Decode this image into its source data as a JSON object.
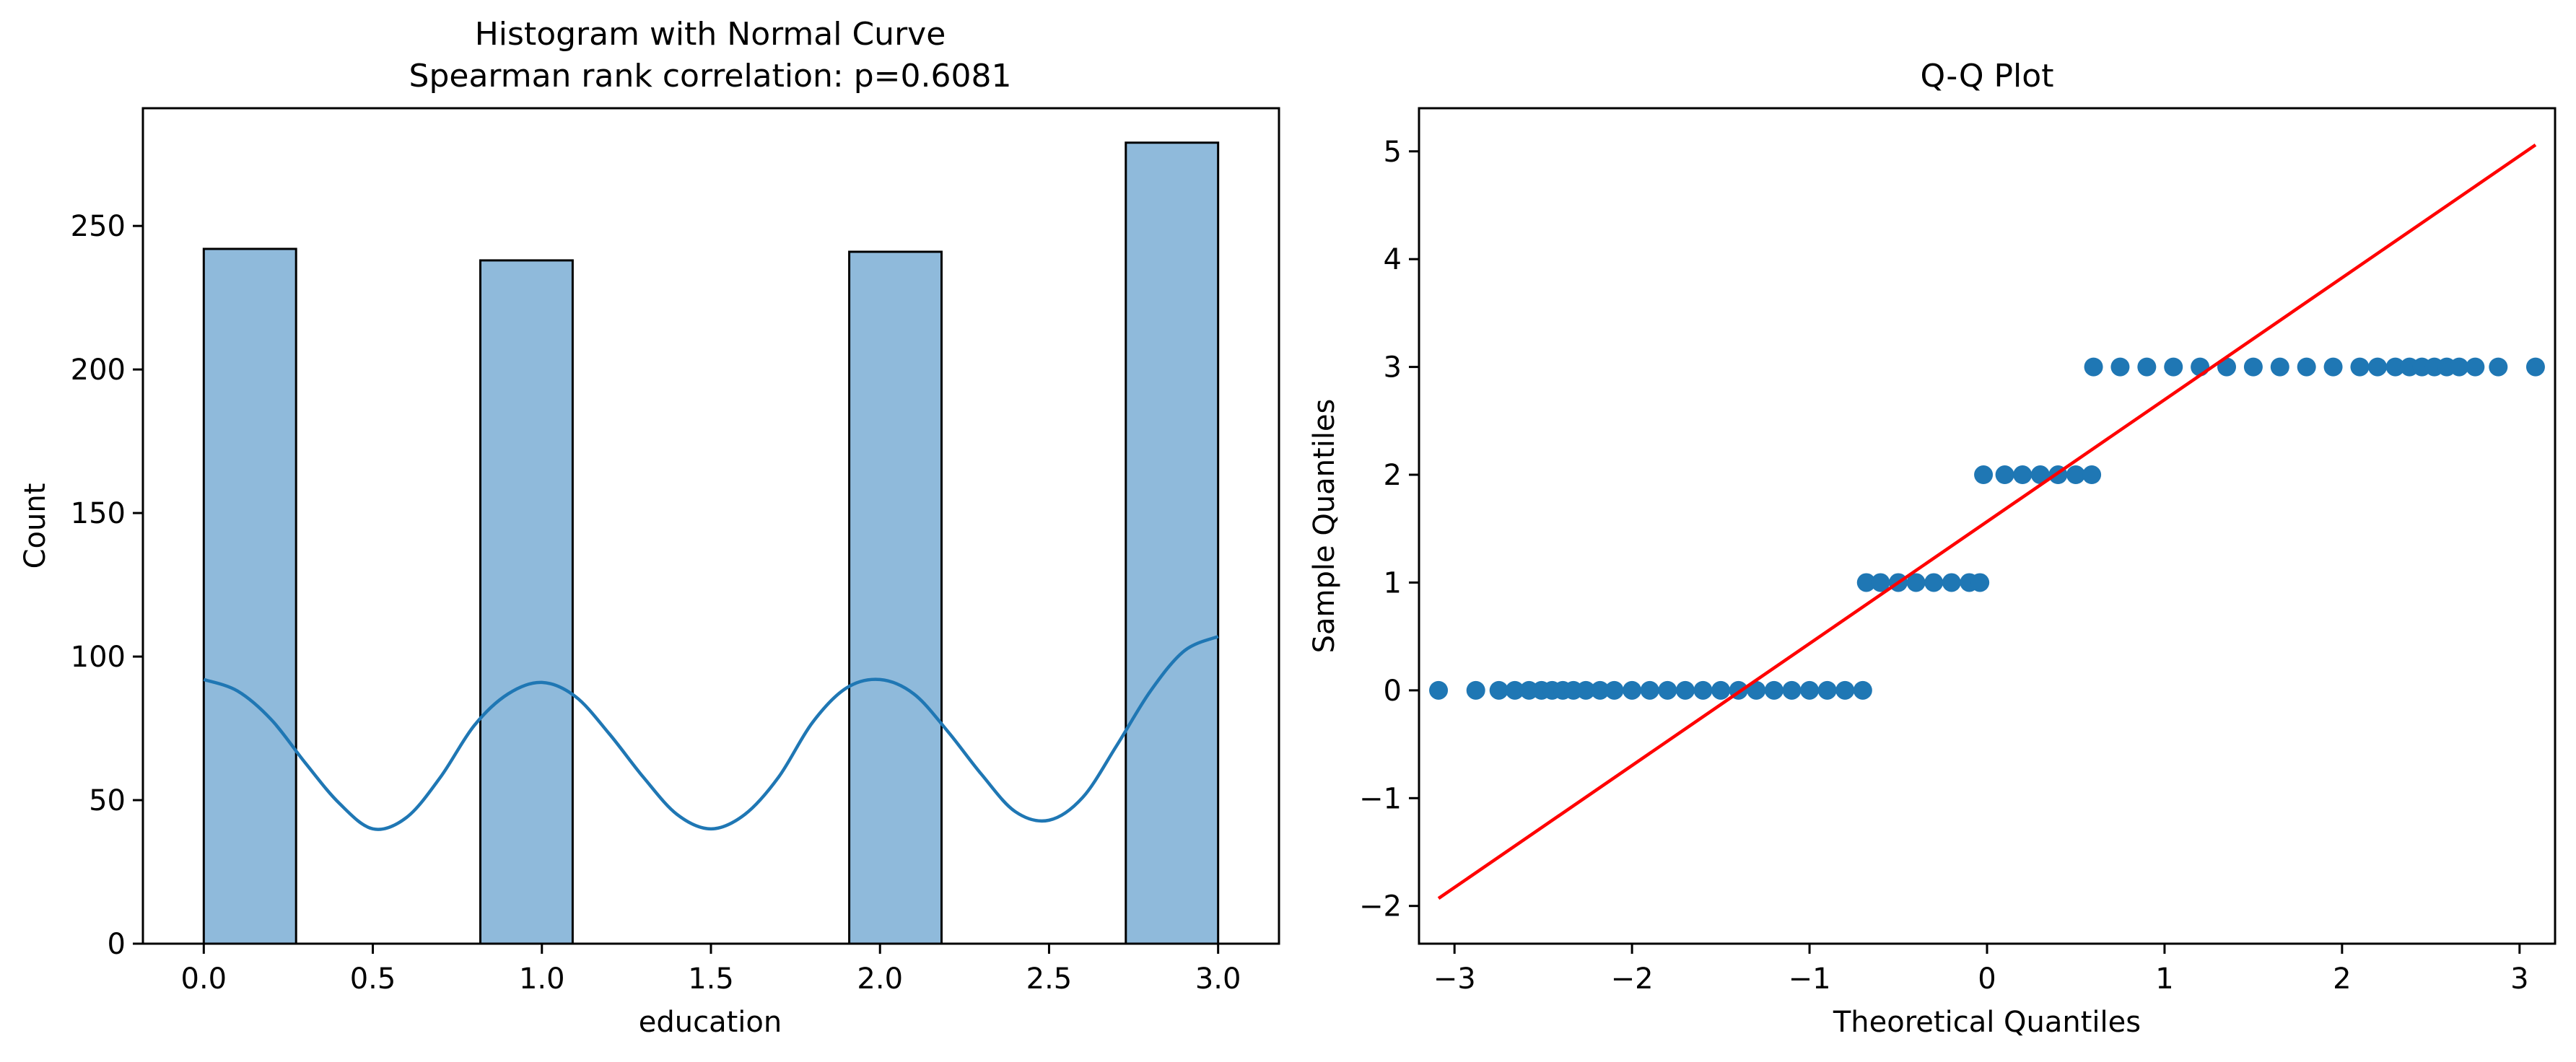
{
  "chart_data": [
    {
      "type": "bar",
      "title_lines": [
        "Histogram with Normal Curve",
        "Spearman rank correlation: p=0.6081"
      ],
      "xlabel": "education",
      "ylabel": "Count",
      "xlim": [
        -0.18,
        3.18
      ],
      "ylim": [
        0,
        291
      ],
      "xticks": [
        0.0,
        0.5,
        1.0,
        1.5,
        2.0,
        2.5,
        3.0
      ],
      "xtick_labels": [
        "0.0",
        "0.5",
        "1.0",
        "1.5",
        "2.0",
        "2.5",
        "3.0"
      ],
      "yticks": [
        0,
        50,
        100,
        150,
        200,
        250
      ],
      "ytick_labels": [
        "0",
        "50",
        "100",
        "150",
        "200",
        "250"
      ],
      "bars": [
        {
          "x0": 0.0,
          "x1": 0.273,
          "value": 242
        },
        {
          "x0": 0.818,
          "x1": 1.091,
          "value": 238
        },
        {
          "x0": 1.909,
          "x1": 2.182,
          "value": 241
        },
        {
          "x0": 2.727,
          "x1": 3.0,
          "value": 279
        }
      ],
      "bar_color": "#8fbadb",
      "bar_edge_color": "#000000",
      "curve": {
        "color": "#1f77b4",
        "x": [
          0.0,
          0.1,
          0.2,
          0.3,
          0.4,
          0.5,
          0.6,
          0.7,
          0.8,
          0.9,
          1.0,
          1.1,
          1.2,
          1.3,
          1.4,
          1.5,
          1.6,
          1.7,
          1.8,
          1.9,
          2.0,
          2.1,
          2.2,
          2.3,
          2.4,
          2.5,
          2.6,
          2.7,
          2.8,
          2.9,
          3.0
        ],
        "y": [
          92,
          88,
          78,
          63,
          49,
          40,
          44,
          58,
          76,
          87,
          91,
          86,
          73,
          58,
          45,
          40,
          45,
          58,
          77,
          89,
          92,
          87,
          74,
          59,
          46,
          43,
          51,
          69,
          88,
          102,
          107
        ]
      },
      "grid": false
    },
    {
      "type": "scatter",
      "title": "Q-Q Plot",
      "xlabel": "Theoretical Quantiles",
      "ylabel": "Sample Quantiles",
      "xlim": [
        -3.2,
        3.2
      ],
      "ylim": [
        -2.35,
        5.4
      ],
      "xticks": [
        -3,
        -2,
        -1,
        0,
        1,
        2,
        3
      ],
      "xtick_labels": [
        "−3",
        "−2",
        "−1",
        "0",
        "1",
        "2",
        "3"
      ],
      "yticks": [
        -2,
        -1,
        0,
        1,
        2,
        3,
        4,
        5
      ],
      "ytick_labels": [
        "−2",
        "−1",
        "0",
        "1",
        "2",
        "3",
        "4",
        "5"
      ],
      "point_color": "#1f77b4",
      "points": [
        {
          "x": -3.09,
          "y": 0
        },
        {
          "x": -2.88,
          "y": 0
        },
        {
          "x": -2.75,
          "y": 0
        },
        {
          "x": -2.66,
          "y": 0
        },
        {
          "x": -2.58,
          "y": 0
        },
        {
          "x": -2.51,
          "y": 0
        },
        {
          "x": -2.45,
          "y": 0
        },
        {
          "x": -2.39,
          "y": 0
        },
        {
          "x": -2.33,
          "y": 0
        },
        {
          "x": -2.26,
          "y": 0
        },
        {
          "x": -2.18,
          "y": 0
        },
        {
          "x": -2.1,
          "y": 0
        },
        {
          "x": -2.0,
          "y": 0
        },
        {
          "x": -1.9,
          "y": 0
        },
        {
          "x": -1.8,
          "y": 0
        },
        {
          "x": -1.7,
          "y": 0
        },
        {
          "x": -1.6,
          "y": 0
        },
        {
          "x": -1.5,
          "y": 0
        },
        {
          "x": -1.4,
          "y": 0
        },
        {
          "x": -1.3,
          "y": 0
        },
        {
          "x": -1.2,
          "y": 0
        },
        {
          "x": -1.1,
          "y": 0
        },
        {
          "x": -1.0,
          "y": 0
        },
        {
          "x": -0.9,
          "y": 0
        },
        {
          "x": -0.8,
          "y": 0
        },
        {
          "x": -0.7,
          "y": 0
        },
        {
          "x": -0.68,
          "y": 1
        },
        {
          "x": -0.6,
          "y": 1
        },
        {
          "x": -0.5,
          "y": 1
        },
        {
          "x": -0.4,
          "y": 1
        },
        {
          "x": -0.3,
          "y": 1
        },
        {
          "x": -0.2,
          "y": 1
        },
        {
          "x": -0.1,
          "y": 1
        },
        {
          "x": -0.04,
          "y": 1
        },
        {
          "x": -0.02,
          "y": 2
        },
        {
          "x": 0.1,
          "y": 2
        },
        {
          "x": 0.2,
          "y": 2
        },
        {
          "x": 0.3,
          "y": 2
        },
        {
          "x": 0.4,
          "y": 2
        },
        {
          "x": 0.5,
          "y": 2
        },
        {
          "x": 0.59,
          "y": 2
        },
        {
          "x": 0.6,
          "y": 3
        },
        {
          "x": 0.75,
          "y": 3
        },
        {
          "x": 0.9,
          "y": 3
        },
        {
          "x": 1.05,
          "y": 3
        },
        {
          "x": 1.2,
          "y": 3
        },
        {
          "x": 1.35,
          "y": 3
        },
        {
          "x": 1.5,
          "y": 3
        },
        {
          "x": 1.65,
          "y": 3
        },
        {
          "x": 1.8,
          "y": 3
        },
        {
          "x": 1.95,
          "y": 3
        },
        {
          "x": 2.1,
          "y": 3
        },
        {
          "x": 2.2,
          "y": 3
        },
        {
          "x": 2.3,
          "y": 3
        },
        {
          "x": 2.38,
          "y": 3
        },
        {
          "x": 2.45,
          "y": 3
        },
        {
          "x": 2.52,
          "y": 3
        },
        {
          "x": 2.59,
          "y": 3
        },
        {
          "x": 2.66,
          "y": 3
        },
        {
          "x": 2.75,
          "y": 3
        },
        {
          "x": 2.88,
          "y": 3
        },
        {
          "x": 3.09,
          "y": 3
        }
      ],
      "reference_line": {
        "color": "#ff0000",
        "x": [
          -3.09,
          3.09
        ],
        "y": [
          -1.93,
          5.06
        ]
      },
      "grid": false
    }
  ]
}
